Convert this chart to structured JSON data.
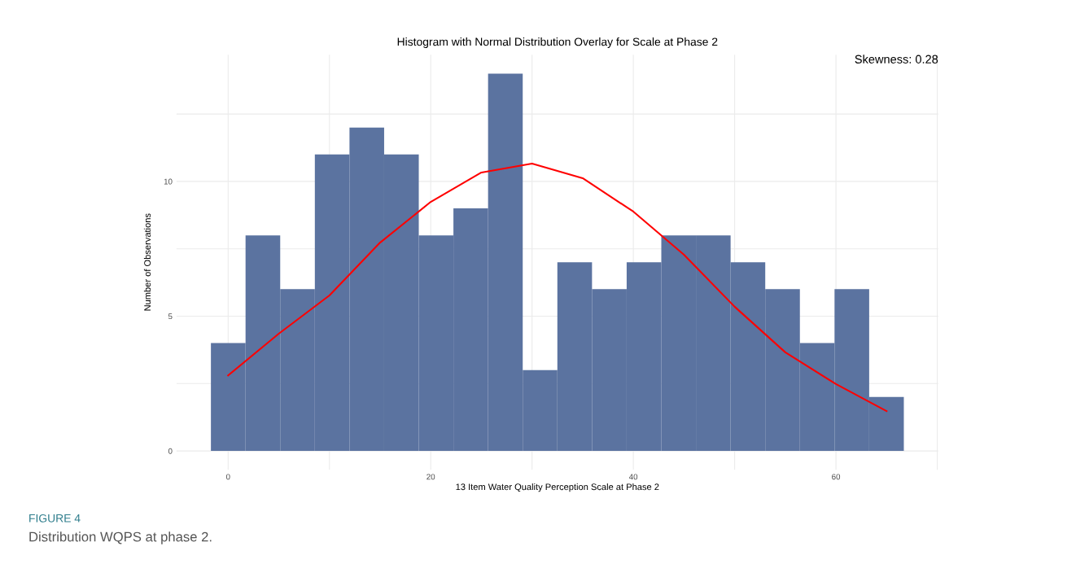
{
  "chart_data": {
    "type": "histogram",
    "title": "Histogram with Normal Distribution Overlay for Scale at Phase 2",
    "xlabel": "13 Item Water Quality Perception Scale at Phase 2",
    "ylabel": "Number of Observations",
    "bins": [
      -1.7,
      1.72,
      5.14,
      8.56,
      11.98,
      15.4,
      18.82,
      22.24,
      25.66,
      29.08,
      32.5,
      35.92,
      39.34,
      42.76,
      46.18,
      49.6,
      53.02,
      56.44,
      59.86,
      63.28,
      66.7
    ],
    "series": [
      {
        "color": "#5b73a0",
        "values": [
          4,
          8,
          6,
          11,
          12,
          11,
          8,
          9,
          14,
          3,
          7,
          6,
          7,
          8,
          8,
          7,
          6,
          4,
          6,
          2
        ]
      },
      {
        "type": "line",
        "color": "#ff0000",
        "x": [
          0,
          5,
          10,
          15,
          20,
          25,
          30,
          35,
          40,
          45,
          50,
          55,
          60,
          65
        ],
        "values": [
          2.8,
          4.35,
          5.77,
          7.73,
          9.24,
          10.33,
          10.66,
          10.12,
          8.88,
          7.28,
          5.35,
          3.66,
          2.48,
          1.48
        ]
      }
    ],
    "xlim": [
      -5.1,
      70.1
    ],
    "ylim": [
      -0.7,
      14.7
    ],
    "xticks": [
      0,
      {
        "value": 10,
        "label": null
      },
      20,
      {
        "value": 30,
        "label": null
      },
      40,
      {
        "value": 50,
        "label": null
      },
      60,
      {
        "value": 70,
        "label": null
      }
    ],
    "yticks": [
      0,
      {
        "value": 2.5,
        "label": null
      },
      5,
      {
        "value": 7.5,
        "label": null
      },
      10,
      {
        "value": 12.5,
        "label": null
      }
    ],
    "grid": true,
    "line_style": "solid",
    "annotations": [
      "Skewness: 0.28",
      "FIGURE 4",
      "Distribution WQPS at phase 2."
    ]
  }
}
